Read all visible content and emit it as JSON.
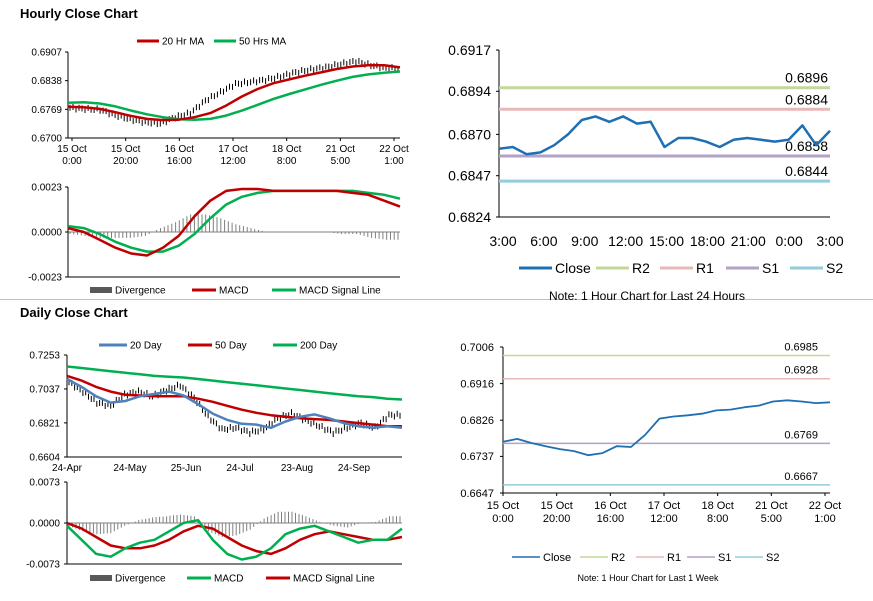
{
  "sections": {
    "hourly_title": "Hourly Close Chart",
    "daily_title": "Daily Close Chart"
  },
  "colors": {
    "ma20": "#c00000",
    "ma50": "#00b050",
    "ma20day": "#4f81bd",
    "ma50day": "#c00000",
    "ma200day": "#00b050",
    "price": "#000000",
    "divergence": "#7f7f7f",
    "macd_hourly": "#c00000",
    "signal_hourly": "#00b050",
    "macd_daily": "#00b050",
    "signal_daily": "#c00000",
    "close": "#1f6fb2",
    "r2": "#c4d79b",
    "r1": "#e6b9b8",
    "s1": "#b3a2c7",
    "s2": "#93cddd"
  },
  "chart_data": [
    {
      "id": "hourly_price",
      "type": "line",
      "title": "",
      "legend": [
        "20 Hr MA",
        "50 Hrs MA"
      ],
      "legend_position": "top",
      "yticks": [
        "0.6907",
        "0.6838",
        "0.6769",
        "0.6700"
      ],
      "ylim": [
        0.67,
        0.6907
      ],
      "xticks": [
        [
          "15 Oct",
          "0:00"
        ],
        [
          "15 Oct",
          "20:00"
        ],
        [
          "16 Oct",
          "16:00"
        ],
        [
          "17 Oct",
          "12:00"
        ],
        [
          "18 Oct",
          "8:00"
        ],
        [
          "21 Oct",
          "5:00"
        ],
        [
          "22 Oct",
          "1:00"
        ]
      ],
      "series": [
        {
          "name": "20 Hr MA",
          "values": [
            0.6775,
            0.6774,
            0.677,
            0.6762,
            0.6753,
            0.6746,
            0.6743,
            0.6744,
            0.675,
            0.676,
            0.6778,
            0.68,
            0.6818,
            0.6832,
            0.6841,
            0.685,
            0.6858,
            0.6866,
            0.6872,
            0.6875,
            0.6875,
            0.687
          ]
        },
        {
          "name": "50 Hrs MA",
          "values": [
            0.6785,
            0.6786,
            0.6783,
            0.6776,
            0.6766,
            0.6757,
            0.675,
            0.6745,
            0.6744,
            0.6746,
            0.6754,
            0.6766,
            0.678,
            0.6794,
            0.6806,
            0.6817,
            0.6828,
            0.6838,
            0.6847,
            0.6853,
            0.6857,
            0.686
          ]
        },
        {
          "name": "price",
          "values": [
            0.6773,
            0.677,
            0.6768,
            0.6755,
            0.6745,
            0.6738,
            0.6735,
            0.675,
            0.676,
            0.679,
            0.681,
            0.683,
            0.6835,
            0.684,
            0.6848,
            0.6858,
            0.6865,
            0.687,
            0.6878,
            0.6885,
            0.6875,
            0.6868
          ]
        }
      ]
    },
    {
      "id": "hourly_macd",
      "type": "line",
      "title": "",
      "legend": [
        "Divergence",
        "MACD",
        "MACD Signal Line"
      ],
      "legend_position": "bottom",
      "yticks": [
        "0.0023",
        "0.0000",
        "-0.0023"
      ],
      "ylim": [
        -0.0023,
        0.0023
      ],
      "series": [
        {
          "name": "MACD",
          "values": [
            0.0002,
            0.0,
            -0.0004,
            -0.0008,
            -0.0011,
            -0.0012,
            -0.0008,
            -0.0002,
            0.0008,
            0.0016,
            0.0021,
            0.0022,
            0.0022,
            0.0021,
            0.0021,
            0.0021,
            0.0021,
            0.0021,
            0.002,
            0.0019,
            0.0016,
            0.0013
          ]
        },
        {
          "name": "MACD Signal Line",
          "values": [
            0.0003,
            0.0002,
            -0.0001,
            -0.0005,
            -0.0008,
            -0.001,
            -0.001,
            -0.0007,
            -0.0001,
            0.0007,
            0.0014,
            0.0018,
            0.002,
            0.0021,
            0.0021,
            0.0021,
            0.0021,
            0.0021,
            0.0021,
            0.002,
            0.0019,
            0.0017
          ]
        },
        {
          "name": "Divergence",
          "values": [
            -0.0001,
            -0.0002,
            -0.0003,
            -0.0003,
            -0.0003,
            -0.0002,
            0.0002,
            0.0005,
            0.0009,
            0.0009,
            0.0007,
            0.0004,
            0.0002,
            0.0,
            0.0,
            0.0,
            0.0,
            0.0,
            -0.0001,
            -0.0001,
            -0.0003,
            -0.0004
          ]
        }
      ]
    },
    {
      "id": "hourly_24h",
      "type": "line",
      "yticks": [
        "0.6917",
        "0.6894",
        "0.6870",
        "0.6847",
        "0.6824"
      ],
      "ylim": [
        0.6824,
        0.6917
      ],
      "xticks": [
        "3:00",
        "6:00",
        "9:00",
        "12:00",
        "15:00",
        "18:00",
        "21:00",
        "0:00",
        "3:00"
      ],
      "levels": [
        {
          "name": "R2",
          "value": 0.6896,
          "label": "0.6896"
        },
        {
          "name": "R1",
          "value": 0.6884,
          "label": "0.6884"
        },
        {
          "name": "S1",
          "value": 0.6858,
          "label": "0.6858"
        },
        {
          "name": "S2",
          "value": 0.6844,
          "label": "0.6844"
        }
      ],
      "series": [
        {
          "name": "Close",
          "values": [
            0.6862,
            0.6863,
            0.6859,
            0.686,
            0.6864,
            0.687,
            0.6878,
            0.688,
            0.6877,
            0.688,
            0.6876,
            0.6877,
            0.6863,
            0.6868,
            0.6868,
            0.6866,
            0.6863,
            0.6867,
            0.6868,
            0.6867,
            0.6866,
            0.6867,
            0.6875,
            0.6864,
            0.6872
          ]
        }
      ],
      "legend": [
        "Close",
        "R2",
        "R1",
        "S1",
        "S2"
      ],
      "note": "Note: 1 Hour Chart for Last 24 Hours"
    },
    {
      "id": "daily_price",
      "type": "line",
      "legend": [
        "20 Day",
        "50 Day",
        "200 Day"
      ],
      "legend_position": "top",
      "yticks": [
        "0.7253",
        "0.7037",
        "0.6821",
        "0.6604"
      ],
      "ylim": [
        0.6604,
        0.7253
      ],
      "xticks": [
        "24-Apr",
        "24-May",
        "25-Jun",
        "24-Jul",
        "23-Aug",
        "24-Sep"
      ],
      "series": [
        {
          "name": "20 Day",
          "values": [
            0.71,
            0.705,
            0.699,
            0.695,
            0.696,
            0.699,
            0.7005,
            0.702,
            0.6995,
            0.694,
            0.688,
            0.684,
            0.6815,
            0.681,
            0.679,
            0.683,
            0.686,
            0.6875,
            0.685,
            0.682,
            0.68,
            0.679,
            0.68,
            0.679
          ]
        },
        {
          "name": "50 Day",
          "values": [
            0.712,
            0.709,
            0.705,
            0.702,
            0.7,
            0.6995,
            0.699,
            0.699,
            0.699,
            0.6975,
            0.6955,
            0.693,
            0.6905,
            0.6885,
            0.687,
            0.686,
            0.685,
            0.6845,
            0.684,
            0.683,
            0.682,
            0.681,
            0.68,
            0.68
          ]
        },
        {
          "name": "200 Day",
          "values": [
            0.718,
            0.717,
            0.716,
            0.715,
            0.714,
            0.713,
            0.712,
            0.7115,
            0.711,
            0.71,
            0.709,
            0.708,
            0.707,
            0.706,
            0.705,
            0.704,
            0.703,
            0.702,
            0.701,
            0.7,
            0.699,
            0.6985,
            0.6975,
            0.697
          ]
        },
        {
          "name": "price",
          "values": [
            0.708,
            0.702,
            0.695,
            0.693,
            0.7,
            0.702,
            0.699,
            0.703,
            0.706,
            0.698,
            0.686,
            0.678,
            0.679,
            0.676,
            0.678,
            0.685,
            0.688,
            0.684,
            0.68,
            0.676,
            0.679,
            0.682,
            0.679,
            0.687
          ]
        }
      ]
    },
    {
      "id": "daily_macd",
      "type": "line",
      "legend": [
        "Divergence",
        "MACD",
        "MACD Signal Line"
      ],
      "legend_position": "bottom",
      "yticks": [
        "0.0073",
        "0.0000",
        "-0.0073"
      ],
      "ylim": [
        -0.0073,
        0.0073
      ],
      "series": [
        {
          "name": "MACD",
          "values": [
            -0.0005,
            -0.003,
            -0.0055,
            -0.006,
            -0.0045,
            -0.0035,
            -0.003,
            -0.0015,
            0.0,
            0.0005,
            -0.003,
            -0.0055,
            -0.0065,
            -0.006,
            -0.0045,
            -0.002,
            -0.001,
            -0.0005,
            -0.0015,
            -0.0025,
            -0.0035,
            -0.003,
            -0.003,
            -0.001
          ]
        },
        {
          "name": "MACD Signal Line",
          "values": [
            0.0,
            -0.001,
            -0.0025,
            -0.004,
            -0.0045,
            -0.0045,
            -0.004,
            -0.003,
            -0.0015,
            -0.0005,
            -0.001,
            -0.0025,
            -0.004,
            -0.005,
            -0.0055,
            -0.0045,
            -0.003,
            -0.002,
            -0.0015,
            -0.002,
            -0.0025,
            -0.003,
            -0.003,
            -0.0025
          ]
        },
        {
          "name": "Divergence",
          "values": [
            -0.0005,
            -0.0015,
            -0.002,
            -0.0018,
            -0.0005,
            0.0005,
            0.001,
            0.0012,
            0.0015,
            0.0012,
            -0.0015,
            -0.0025,
            -0.0022,
            -0.0012,
            0.0008,
            0.002,
            0.002,
            0.0012,
            0.0002,
            -0.0005,
            -0.0008,
            0.0,
            0.0002,
            0.0012
          ]
        }
      ]
    },
    {
      "id": "hourly_week",
      "type": "line",
      "yticks": [
        "0.7006",
        "0.6916",
        "0.6826",
        "0.6737",
        "0.6647"
      ],
      "ylim": [
        0.6647,
        0.7006
      ],
      "xticks": [
        [
          "15 Oct",
          "0:00"
        ],
        [
          "15 Oct",
          "20:00"
        ],
        [
          "16 Oct",
          "16:00"
        ],
        [
          "17 Oct",
          "12:00"
        ],
        [
          "18 Oct",
          "8:00"
        ],
        [
          "21 Oct",
          "5:00"
        ],
        [
          "22 Oct",
          "1:00"
        ]
      ],
      "levels": [
        {
          "name": "R2",
          "value": 0.6985,
          "label": "0.6985"
        },
        {
          "name": "R1",
          "value": 0.6928,
          "label": "0.6928"
        },
        {
          "name": "S1",
          "value": 0.6769,
          "label": "0.6769"
        },
        {
          "name": "S2",
          "value": 0.6667,
          "label": "0.6667"
        }
      ],
      "series": [
        {
          "name": "Close",
          "values": [
            0.6773,
            0.678,
            0.677,
            0.6762,
            0.6755,
            0.675,
            0.674,
            0.6745,
            0.6762,
            0.676,
            0.679,
            0.683,
            0.6835,
            0.6838,
            0.6842,
            0.685,
            0.6852,
            0.6858,
            0.6862,
            0.6872,
            0.6875,
            0.6872,
            0.6868,
            0.687
          ]
        }
      ],
      "legend": [
        "Close",
        "R2",
        "R1",
        "S1",
        "S2"
      ],
      "note": "Note: 1 Hour Chart for Last 1 Week"
    }
  ]
}
